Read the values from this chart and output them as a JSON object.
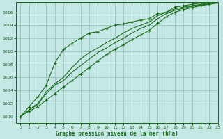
{
  "xlabel": "Graphe pression niveau de la mer (hPa)",
  "ylim": [
    999.0,
    1017.5
  ],
  "xlim": [
    -0.5,
    23
  ],
  "yticks": [
    1000,
    1002,
    1004,
    1006,
    1008,
    1010,
    1012,
    1014,
    1016
  ],
  "xticks": [
    0,
    1,
    2,
    3,
    4,
    5,
    6,
    7,
    8,
    9,
    10,
    11,
    12,
    13,
    14,
    15,
    16,
    17,
    18,
    19,
    20,
    21,
    22,
    23
  ],
  "bg_color": "#c5e8e5",
  "grid_color": "#90c0bb",
  "line_color": "#1a6b1a",
  "series_steep": [
    1000.0,
    1001.5,
    1003.0,
    1004.8,
    1008.2,
    1010.3,
    1011.2,
    1012.0,
    1012.8,
    1013.0,
    1013.5,
    1014.0,
    1014.2,
    1014.5,
    1014.8,
    1015.0,
    1015.8,
    1016.0,
    1016.8,
    1017.0,
    1017.2,
    1017.4,
    1017.5,
    1017.6
  ],
  "series_mid1": [
    1000.0,
    1001.0,
    1002.0,
    1003.8,
    1005.0,
    1006.0,
    1007.5,
    1008.8,
    1009.8,
    1010.5,
    1011.3,
    1012.0,
    1012.8,
    1013.5,
    1014.0,
    1014.5,
    1015.5,
    1016.0,
    1016.5,
    1016.8,
    1017.0,
    1017.2,
    1017.4,
    1017.5
  ],
  "series_mid2": [
    1000.0,
    1001.0,
    1001.8,
    1003.5,
    1004.8,
    1005.5,
    1006.8,
    1007.8,
    1008.8,
    1009.8,
    1010.5,
    1011.3,
    1012.0,
    1012.8,
    1013.5,
    1014.0,
    1015.0,
    1015.8,
    1016.3,
    1016.6,
    1016.9,
    1017.1,
    1017.3,
    1017.5
  ],
  "series_slow": [
    1000.0,
    1000.8,
    1001.5,
    1002.5,
    1003.5,
    1004.5,
    1005.5,
    1006.5,
    1007.5,
    1008.5,
    1009.5,
    1010.3,
    1011.0,
    1011.8,
    1012.5,
    1013.2,
    1014.3,
    1015.3,
    1016.0,
    1016.4,
    1016.7,
    1017.0,
    1017.2,
    1017.4
  ]
}
